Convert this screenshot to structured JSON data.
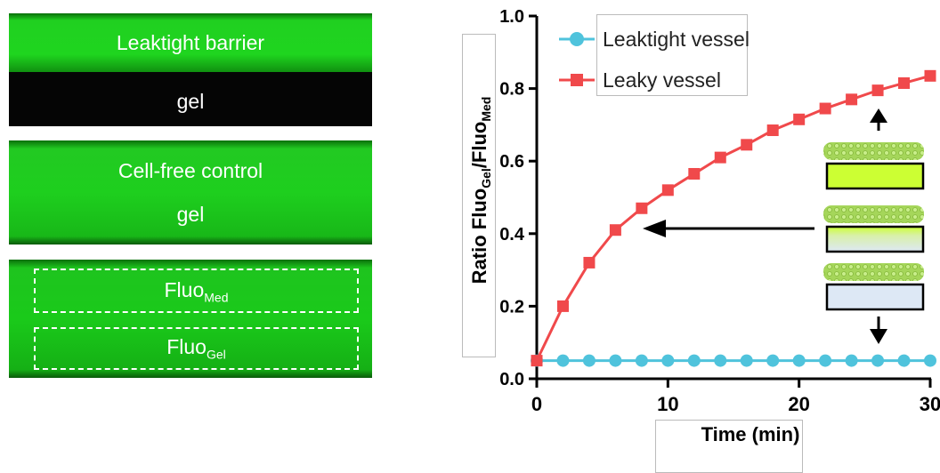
{
  "panels": {
    "leaktight": {
      "top_label": "Leaktight barrier",
      "bottom_label": "gel"
    },
    "cellfree": {
      "top_label": "Cell-free control",
      "bottom_label": "gel"
    },
    "measure": {
      "med_main": "Fluo",
      "med_sub": "Med",
      "gel_main": "Fluo",
      "gel_sub": "Gel"
    }
  },
  "colors": {
    "leaktight": "#4fc3dc",
    "leaky": "#f0494b",
    "gel_fill": "#ccff33",
    "bead": "#a5d65a",
    "pale_fill": "#dde8f5",
    "green": "#22cc22"
  },
  "chart_data": {
    "type": "line",
    "xlabel": "Time (min)",
    "ylabel_main": "Ratio Fluo",
    "ylabel_sub1": "Gel",
    "ylabel_sep": "/Fluo",
    "ylabel_sub2": "Med",
    "xlim": [
      0,
      30
    ],
    "ylim": [
      0,
      1.0
    ],
    "xticks": [
      0,
      10,
      20,
      30
    ],
    "yticks": [
      0.0,
      0.2,
      0.4,
      0.6,
      0.8,
      1.0
    ],
    "ytick_labels": [
      "0.0",
      "0.2",
      "0.4",
      "0.6",
      "0.8",
      "1.0"
    ],
    "grid": false,
    "legend_position": "top-left",
    "x": [
      0,
      2,
      4,
      6,
      8,
      10,
      12,
      14,
      16,
      18,
      20,
      22,
      24,
      26,
      28,
      30
    ],
    "series": [
      {
        "name": "Leaktight vessel",
        "marker": "circle",
        "color": "#4fc3dc",
        "values": [
          0.05,
          0.05,
          0.05,
          0.05,
          0.05,
          0.05,
          0.05,
          0.05,
          0.05,
          0.05,
          0.05,
          0.05,
          0.05,
          0.05,
          0.05,
          0.05
        ]
      },
      {
        "name": "Leaky vessel",
        "marker": "square",
        "color": "#f0494b",
        "values": [
          0.05,
          0.2,
          0.32,
          0.41,
          0.47,
          0.52,
          0.565,
          0.61,
          0.645,
          0.685,
          0.715,
          0.745,
          0.77,
          0.795,
          0.815,
          0.835
        ]
      }
    ]
  }
}
